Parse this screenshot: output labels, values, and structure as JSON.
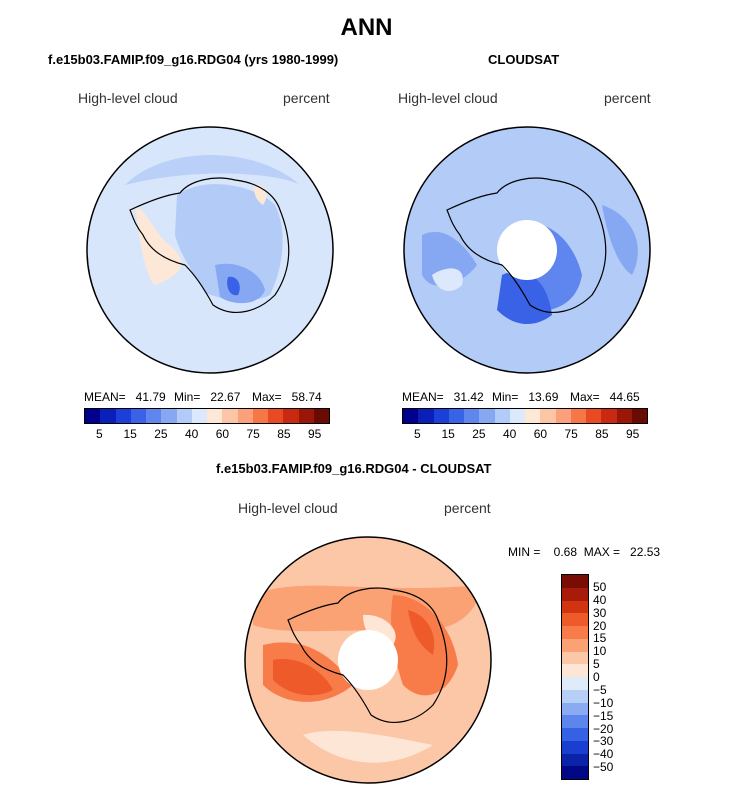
{
  "figure": {
    "title": "ANN"
  },
  "panels": {
    "left": {
      "title": "f.e15b03.FAMIP.f09_g16.RDG04 (yrs 1980-1999)",
      "variable": "High-level cloud",
      "units": "percent",
      "stats": {
        "mean": "MEAN=   41.79",
        "min": "Min=   22.67",
        "max": "Max=   58.74"
      }
    },
    "right": {
      "title": "CLOUDSAT",
      "variable": "High-level cloud",
      "units": "percent",
      "stats": {
        "mean": "MEAN=   31.42",
        "min": "Min=   13.69",
        "max": "Max=   44.65"
      }
    },
    "diff": {
      "title": "f.e15b03.FAMIP.f09_g16.RDG04 - CLOUDSAT",
      "variable": "High-level cloud",
      "units": "percent",
      "minmax": "MIN =    0.68  MAX =   22.53"
    }
  },
  "colorbar_abs": {
    "labels": [
      "5",
      "15",
      "25",
      "40",
      "60",
      "75",
      "85",
      "95"
    ],
    "colors": [
      "#00008c",
      "#0a1fb8",
      "#1c3fd8",
      "#3a62e6",
      "#5f86ee",
      "#86a8f3",
      "#b3cbf7",
      "#dce8fb",
      "#fde8d8",
      "#fcc5a5",
      "#fba07a",
      "#f77648",
      "#e84a22",
      "#c72a10",
      "#9a1606",
      "#6b0a02"
    ]
  },
  "colorbar_diff": {
    "labels": [
      "50",
      "40",
      "30",
      "20",
      "15",
      "10",
      "5",
      "0",
      "−5",
      "−10",
      "−15",
      "−20",
      "−30",
      "−40",
      "−50"
    ],
    "colors": [
      "#7a0d03",
      "#a81b08",
      "#d23310",
      "#ef5a2a",
      "#f87c4a",
      "#fba275",
      "#fcc7a7",
      "#fde6d6",
      "#e0ebfa",
      "#b7cef7",
      "#8aabf2",
      "#5c86ec",
      "#3561e5",
      "#1a3ecf",
      "#0b23a8",
      "#010785"
    ]
  },
  "fields": {
    "left": {
      "ocean": "#d7e6fb",
      "cont1": "#b3cbf7",
      "cont2": "#86a8f3",
      "cont3": "#3a62e6",
      "warm": "#fde8d8"
    },
    "right": {
      "ocean": "#b3cbf7",
      "cont1": "#86a8f3",
      "cont2": "#5f86ee",
      "cont3": "#3a62e6",
      "warm": "#dce8fb"
    },
    "diff": {
      "ocean": "#fcc7a7",
      "cont1": "#fba275",
      "cont2": "#f87c4a",
      "cont3": "#ef5a2a",
      "warm": "#fde6d6"
    }
  }
}
